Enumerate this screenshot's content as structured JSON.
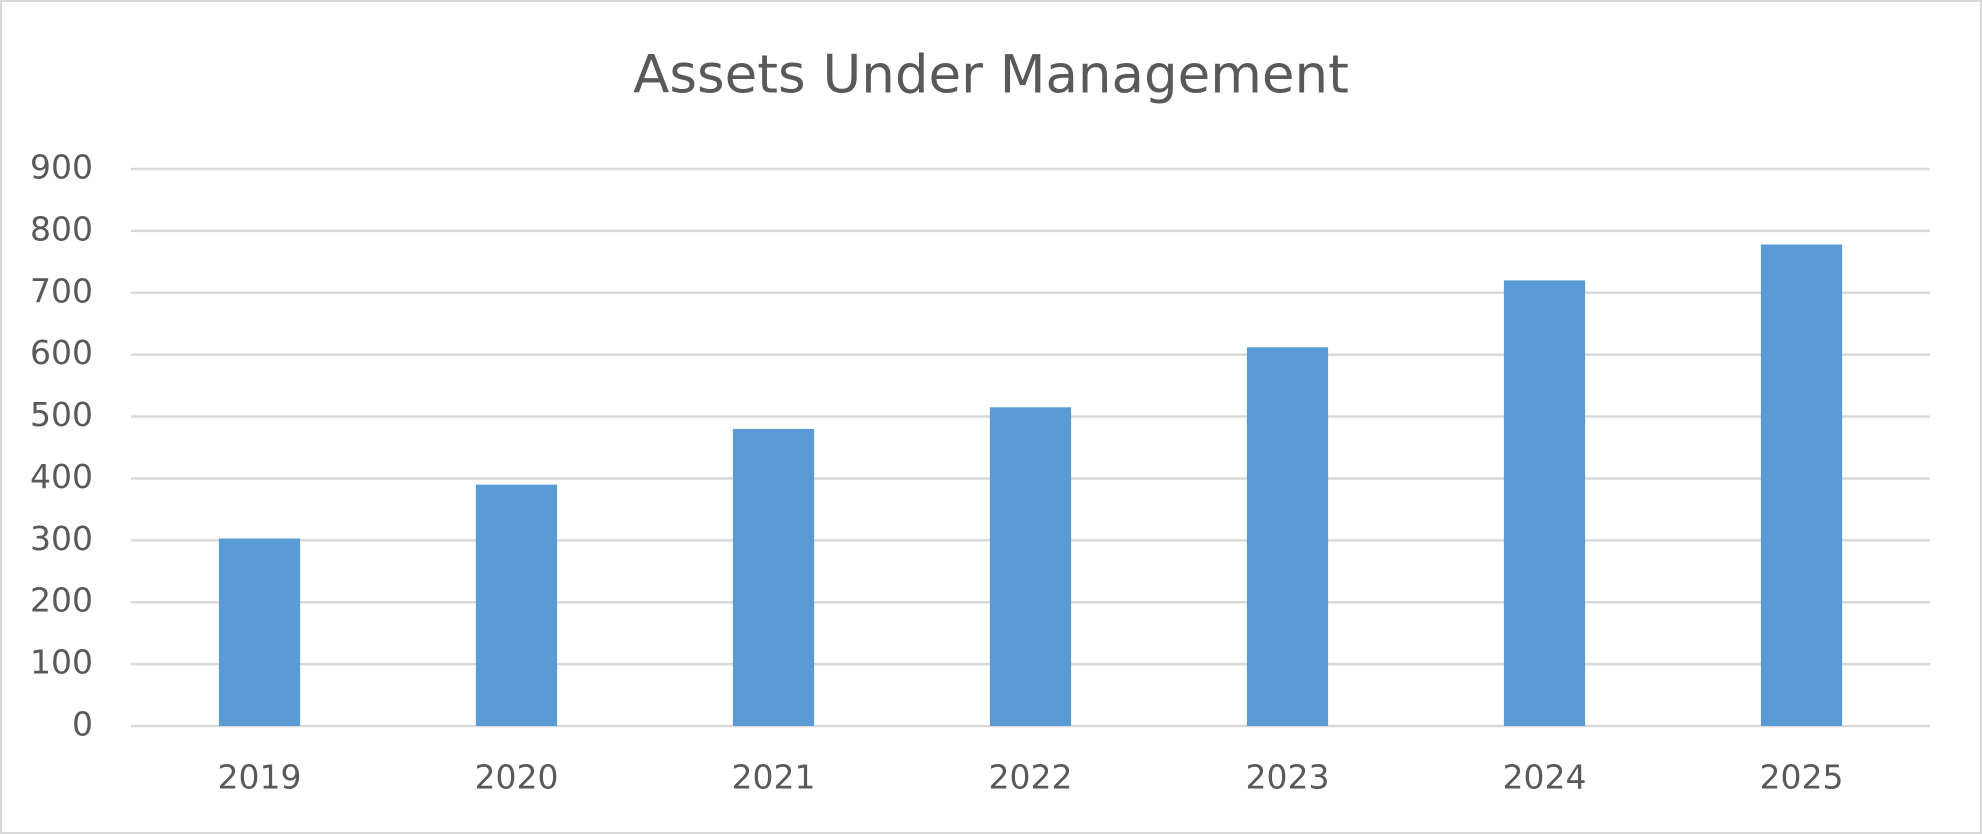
{
  "chart_data": {
    "type": "bar",
    "title": "Assets Under Management",
    "categories": [
      "2019",
      "2020",
      "2021",
      "2022",
      "2023",
      "2024",
      "2025"
    ],
    "values": [
      303,
      390,
      480,
      515,
      612,
      720,
      778
    ],
    "color": "#5b9bd5",
    "ylim": [
      0,
      900
    ],
    "yticks": [
      0,
      100,
      200,
      300,
      400,
      500,
      600,
      700,
      800,
      900
    ],
    "grid": true
  }
}
